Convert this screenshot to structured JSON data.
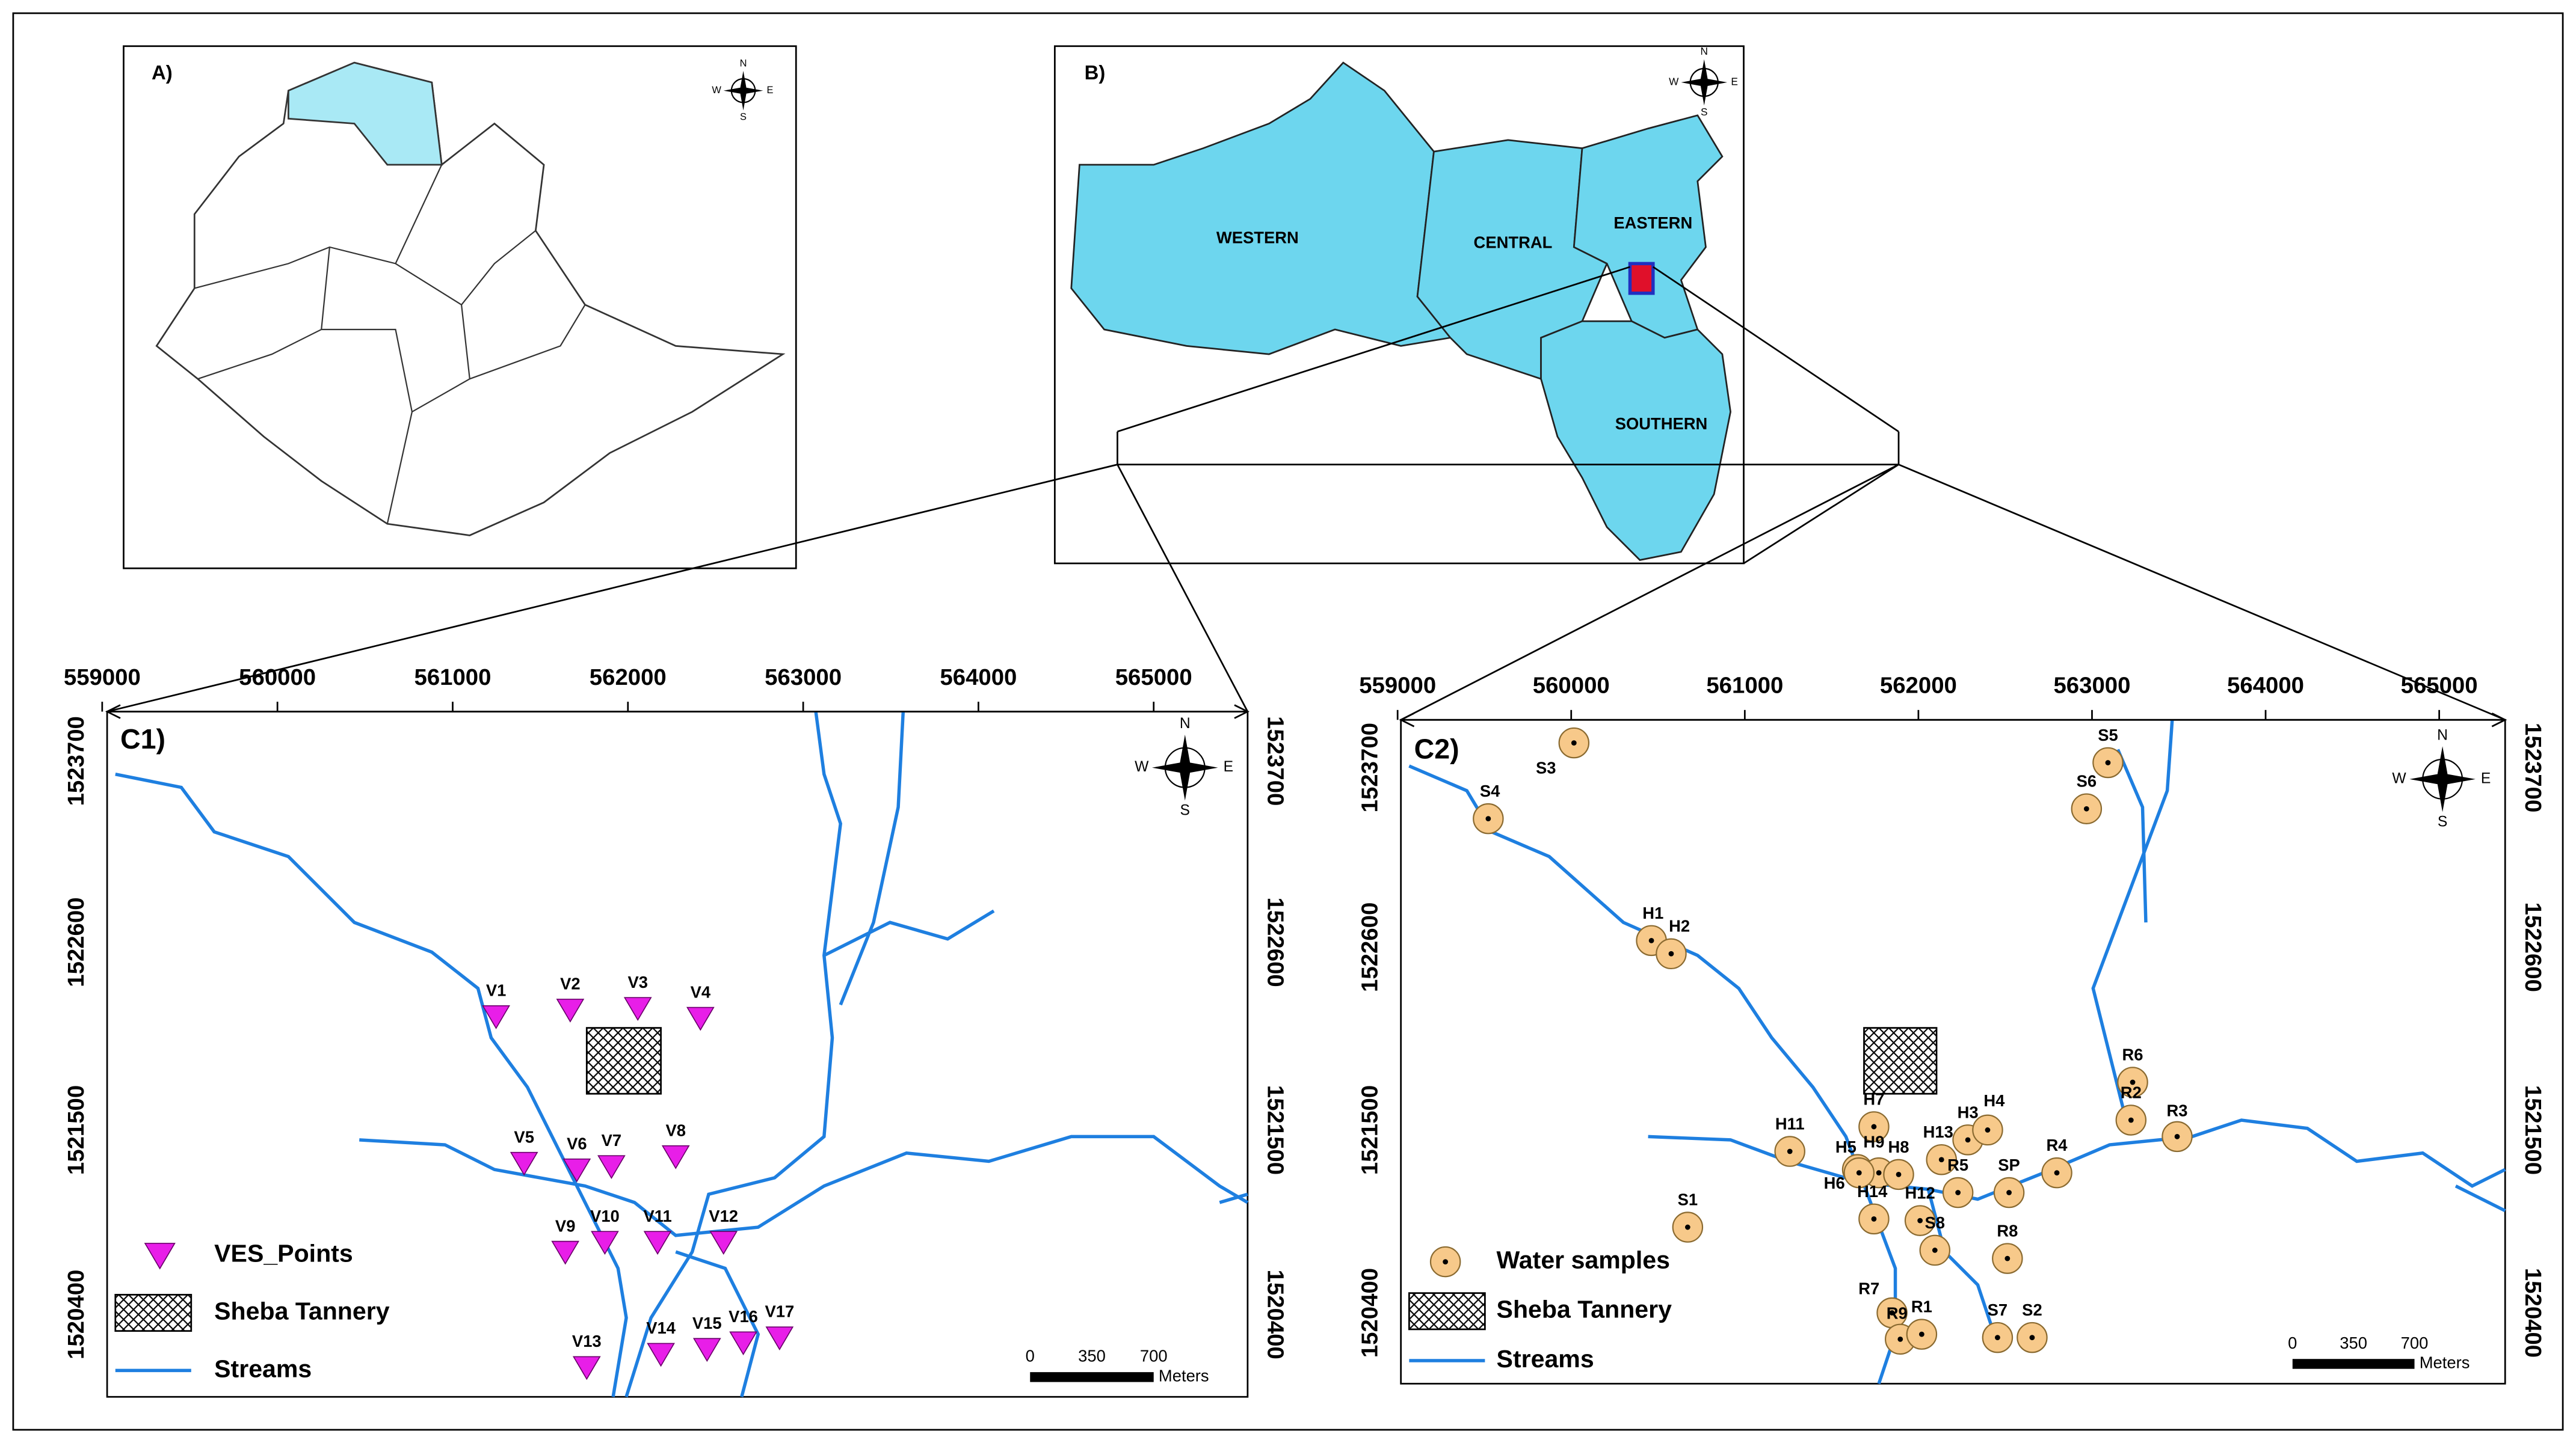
{
  "panels": {
    "a": {
      "label": "A)"
    },
    "b": {
      "label": "B)",
      "regions": [
        "WESTERN",
        "CENTRAL",
        "EASTERN",
        "SOUTHERN"
      ]
    },
    "c1": {
      "label": "C1)",
      "x_ticks": [
        "559000",
        "560000",
        "561000",
        "562000",
        "563000",
        "564000",
        "565000"
      ],
      "y_ticks": [
        "1523700",
        "1522600",
        "1521500",
        "1520400"
      ],
      "points": [
        "V1",
        "V2",
        "V3",
        "V4",
        "V5",
        "V6",
        "V7",
        "V8",
        "V9",
        "V10",
        "V11",
        "V12",
        "V13",
        "V14",
        "V15",
        "V16",
        "V17"
      ],
      "legend": [
        "VES_Points",
        "Sheba Tannery",
        "Streams"
      ],
      "scale": [
        "0",
        "350",
        "700",
        "Meters"
      ]
    },
    "c2": {
      "label": "C2)",
      "x_ticks": [
        "559000",
        "560000",
        "561000",
        "562000",
        "563000",
        "564000",
        "565000"
      ],
      "y_ticks": [
        "1523700",
        "1522600",
        "1521500",
        "1520400"
      ],
      "points": [
        "S3",
        "S4",
        "S5",
        "S6",
        "H1",
        "H2",
        "R6",
        "R2",
        "R3",
        "H7",
        "H11",
        "H5",
        "H9",
        "H8",
        "H13",
        "H3",
        "H4",
        "R4",
        "H6",
        "H14",
        "H12",
        "R5",
        "SP",
        "S1",
        "S8",
        "R8",
        "R7",
        "R9",
        "R1",
        "S7",
        "S2"
      ],
      "legend": [
        "Water samples",
        "Sheba Tannery",
        "Streams"
      ],
      "scale": [
        "0",
        "350",
        "700",
        "Meters"
      ]
    }
  },
  "compass": [
    "N",
    "S",
    "W",
    "E"
  ]
}
